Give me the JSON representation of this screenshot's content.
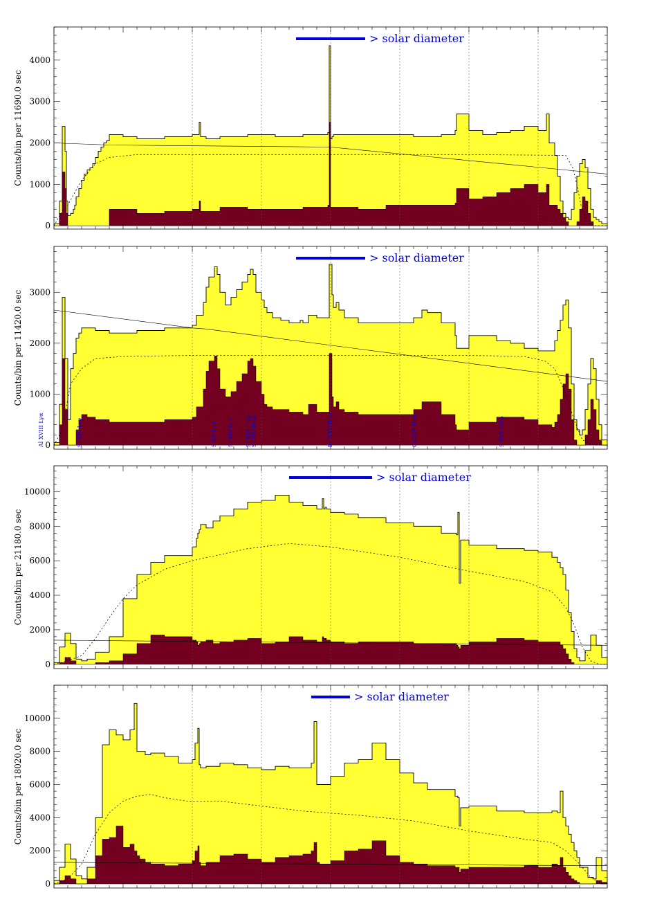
{
  "colors": {
    "total_fill": "#ffff33",
    "sub_fill": "#730020",
    "outline": "#000000",
    "legend_blue": "#0000dd",
    "grid": "#555555"
  },
  "legend_text": "> solar diameter",
  "chart_data": [
    {
      "type": "area",
      "xlim": [
        0,
        400
      ],
      "ylim": [
        -80,
        4800
      ],
      "yticks": [
        0,
        1000,
        2000,
        3000,
        4000
      ],
      "ylabel": "Counts/bin per 11690.0 sec",
      "grid": "vertical dotted",
      "legend_bar": [
        175,
        225
      ],
      "line_labels": [],
      "x": [
        0,
        4,
        6,
        8,
        9,
        10,
        12,
        14,
        15,
        16,
        18,
        20,
        22,
        24,
        26,
        28,
        30,
        32,
        34,
        36,
        38,
        40,
        50,
        60,
        80,
        100,
        105,
        106,
        110,
        120,
        140,
        160,
        180,
        198,
        199,
        200,
        201,
        202,
        220,
        240,
        260,
        280,
        290,
        291,
        300,
        310,
        320,
        330,
        340,
        350,
        356,
        358,
        360,
        362,
        364,
        366,
        368,
        370,
        372,
        374,
        376,
        378,
        380,
        382,
        384,
        386,
        388,
        390,
        392,
        394,
        396,
        400
      ],
      "total": [
        50,
        600,
        2400,
        1800,
        600,
        250,
        300,
        400,
        500,
        700,
        900,
        1100,
        1250,
        1350,
        1400,
        1500,
        1650,
        1800,
        1900,
        2000,
        2050,
        2200,
        2150,
        2100,
        2150,
        2200,
        2500,
        2150,
        2100,
        2150,
        2200,
        2150,
        2200,
        2250,
        4350,
        2100,
        2150,
        2200,
        2200,
        2200,
        2150,
        2200,
        2300,
        2700,
        2300,
        2200,
        2250,
        2300,
        2400,
        2300,
        2700,
        2000,
        2000,
        1700,
        1200,
        600,
        300,
        200,
        150,
        400,
        800,
        1200,
        1500,
        1600,
        1400,
        900,
        400,
        200,
        150,
        100,
        50,
        50
      ],
      "sub": [
        0,
        300,
        1300,
        900,
        300,
        0,
        0,
        0,
        0,
        0,
        0,
        0,
        0,
        0,
        0,
        0,
        0,
        0,
        0,
        0,
        0,
        400,
        400,
        300,
        350,
        400,
        600,
        350,
        350,
        450,
        400,
        400,
        450,
        500,
        2500,
        450,
        450,
        450,
        400,
        500,
        500,
        500,
        550,
        900,
        650,
        700,
        800,
        900,
        1000,
        800,
        1000,
        500,
        500,
        500,
        400,
        300,
        200,
        100,
        0,
        0,
        0,
        100,
        400,
        700,
        600,
        300,
        100,
        0,
        0,
        0,
        0,
        0
      ],
      "background_line": [
        [
          0,
          2000
        ],
        [
          40,
          1950
        ],
        [
          200,
          1900
        ],
        [
          400,
          1250
        ]
      ],
      "model": [
        [
          0,
          0
        ],
        [
          5,
          300
        ],
        [
          10,
          500
        ],
        [
          20,
          1100
        ],
        [
          30,
          1500
        ],
        [
          40,
          1650
        ],
        [
          60,
          1720
        ],
        [
          100,
          1720
        ],
        [
          200,
          1720
        ],
        [
          300,
          1720
        ],
        [
          370,
          1700
        ],
        [
          375,
          1400
        ],
        [
          378,
          1000
        ],
        [
          381,
          500
        ],
        [
          385,
          100
        ],
        [
          390,
          0
        ],
        [
          400,
          0
        ]
      ]
    },
    {
      "type": "area",
      "xlim": [
        0,
        400
      ],
      "ylim": [
        -80,
        3900
      ],
      "yticks": [
        0,
        1000,
        2000,
        3000
      ],
      "ylabel": "Counts/bin per 11420.0 sec",
      "grid": "vertical dotted",
      "legend_bar": [
        175,
        225
      ],
      "line_labels": [
        {
          "x": -8,
          "text": "Al XVIII Lyα"
        },
        {
          "x": 20,
          "text": "Si XIV Lyγ"
        },
        {
          "x": 117,
          "text": "S XV Lyα"
        },
        {
          "x": 129,
          "text": "Si XIV Lyβ"
        },
        {
          "x": 142,
          "text": "Si XIII 1s3p"
        },
        {
          "x": 146,
          "text": "Si XIII Heα"
        },
        {
          "x": 201,
          "text": "Fe XXV Heα"
        },
        {
          "x": 262,
          "text": "Ca XIX Heα"
        },
        {
          "x": 325,
          "text": "S XVI 1s3p"
        }
      ],
      "x": [
        0,
        4,
        6,
        8,
        10,
        12,
        14,
        16,
        18,
        20,
        22,
        24,
        30,
        40,
        60,
        80,
        100,
        103,
        108,
        110,
        112,
        116,
        118,
        120,
        124,
        128,
        132,
        136,
        140,
        142,
        144,
        146,
        150,
        152,
        154,
        158,
        164,
        170,
        178,
        180,
        184,
        190,
        197,
        199,
        201,
        202,
        204,
        206,
        210,
        220,
        240,
        260,
        266,
        270,
        280,
        290,
        291,
        300,
        320,
        330,
        340,
        350,
        360,
        362,
        364,
        366,
        368,
        370,
        372,
        374,
        376,
        378,
        380,
        382,
        384,
        386,
        388,
        390,
        392,
        394,
        396,
        400
      ],
      "total": [
        50,
        800,
        2900,
        1700,
        500,
        1500,
        1800,
        2100,
        2200,
        2300,
        2300,
        2300,
        2250,
        2200,
        2250,
        2300,
        2350,
        2550,
        2800,
        3100,
        3300,
        3500,
        3350,
        3000,
        2750,
        2900,
        3050,
        3200,
        3350,
        3450,
        3350,
        3000,
        2850,
        2700,
        2600,
        2500,
        2450,
        2400,
        2450,
        2400,
        2550,
        2500,
        2500,
        3550,
        2950,
        2700,
        2800,
        2650,
        2500,
        2400,
        2400,
        2500,
        2650,
        2600,
        2400,
        2150,
        1900,
        2150,
        2050,
        2000,
        1900,
        1850,
        1850,
        2050,
        2250,
        2450,
        2750,
        2850,
        2300,
        1200,
        500,
        300,
        200,
        300,
        700,
        1200,
        1700,
        1500,
        900,
        400,
        100,
        50
      ],
      "sub": [
        0,
        400,
        1700,
        700,
        0,
        0,
        0,
        300,
        500,
        600,
        600,
        550,
        500,
        450,
        450,
        500,
        550,
        750,
        1100,
        1450,
        1650,
        1750,
        1500,
        1100,
        950,
        1050,
        1250,
        1400,
        1650,
        1700,
        1550,
        1250,
        1000,
        800,
        750,
        700,
        700,
        650,
        650,
        600,
        800,
        650,
        650,
        1800,
        950,
        750,
        850,
        700,
        650,
        600,
        600,
        700,
        850,
        850,
        600,
        400,
        300,
        450,
        550,
        550,
        500,
        400,
        350,
        450,
        600,
        900,
        1200,
        1400,
        1100,
        500,
        100,
        0,
        0,
        0,
        200,
        500,
        900,
        700,
        300,
        100,
        0,
        0
      ],
      "background_line": [
        [
          0,
          2650
        ],
        [
          100,
          2300
        ],
        [
          110,
          2280
        ],
        [
          400,
          1250
        ]
      ],
      "model": [
        [
          0,
          0
        ],
        [
          6,
          300
        ],
        [
          12,
          1200
        ],
        [
          20,
          1500
        ],
        [
          30,
          1700
        ],
        [
          50,
          1740
        ],
        [
          100,
          1760
        ],
        [
          200,
          1760
        ],
        [
          300,
          1760
        ],
        [
          340,
          1740
        ],
        [
          355,
          1650
        ],
        [
          362,
          1500
        ],
        [
          370,
          1000
        ],
        [
          376,
          500
        ],
        [
          382,
          100
        ],
        [
          390,
          0
        ],
        [
          400,
          0
        ]
      ]
    },
    {
      "type": "area",
      "xlim": [
        0,
        400
      ],
      "ylim": [
        -250,
        11500
      ],
      "yticks": [
        0,
        2000,
        4000,
        6000,
        8000,
        10000
      ],
      "ylabel": "Counts/bin per 21180.0 sec",
      "grid": "vertical dotted",
      "legend_bar": [
        170,
        230
      ],
      "line_labels": [],
      "x": [
        0,
        4,
        8,
        12,
        16,
        20,
        24,
        30,
        40,
        50,
        60,
        70,
        80,
        100,
        103,
        104,
        105,
        106,
        110,
        115,
        120,
        130,
        140,
        150,
        160,
        170,
        180,
        190,
        194,
        195,
        196,
        197,
        200,
        210,
        220,
        240,
        260,
        280,
        291,
        292,
        293,
        294,
        300,
        320,
        340,
        350,
        360,
        364,
        366,
        368,
        370,
        372,
        374,
        376,
        378,
        380,
        384,
        388,
        392,
        396,
        400
      ],
      "total": [
        100,
        1000,
        1800,
        1200,
        300,
        200,
        300,
        700,
        1600,
        3800,
        5200,
        5900,
        6300,
        6800,
        7300,
        7600,
        7800,
        8100,
        7900,
        8300,
        8600,
        9000,
        9400,
        9500,
        9800,
        9400,
        9200,
        9000,
        9600,
        9000,
        9100,
        9000,
        8800,
        8700,
        8500,
        8200,
        8000,
        7600,
        7500,
        8800,
        4700,
        7200,
        6900,
        6700,
        6600,
        6500,
        6200,
        5900,
        5600,
        5200,
        4300,
        3000,
        1900,
        900,
        400,
        200,
        800,
        1700,
        1100,
        400,
        100
      ],
      "sub": [
        0,
        100,
        400,
        200,
        0,
        0,
        0,
        100,
        200,
        600,
        1200,
        1700,
        1600,
        1400,
        1300,
        1100,
        1200,
        1300,
        1400,
        1200,
        1300,
        1400,
        1500,
        1200,
        1300,
        1600,
        1400,
        1300,
        1600,
        1500,
        1500,
        1400,
        1300,
        1200,
        1300,
        1300,
        1200,
        1200,
        1100,
        1000,
        900,
        1100,
        1300,
        1500,
        1400,
        1300,
        1300,
        1300,
        1100,
        900,
        600,
        300,
        100,
        0,
        0,
        0,
        0,
        0,
        0,
        0,
        0
      ],
      "background_line": [
        [
          0,
          1400
        ],
        [
          400,
          1100
        ]
      ],
      "model": [
        [
          0,
          0
        ],
        [
          10,
          200
        ],
        [
          20,
          500
        ],
        [
          30,
          1500
        ],
        [
          40,
          2700
        ],
        [
          50,
          3800
        ],
        [
          60,
          4600
        ],
        [
          80,
          5500
        ],
        [
          100,
          6000
        ],
        [
          140,
          6700
        ],
        [
          170,
          7000
        ],
        [
          200,
          6800
        ],
        [
          250,
          6200
        ],
        [
          300,
          5400
        ],
        [
          340,
          4800
        ],
        [
          360,
          4200
        ],
        [
          370,
          3300
        ],
        [
          376,
          2300
        ],
        [
          382,
          1000
        ],
        [
          388,
          200
        ],
        [
          394,
          0
        ],
        [
          400,
          0
        ]
      ]
    },
    {
      "type": "area",
      "xlim": [
        0,
        400
      ],
      "ylim": [
        -250,
        12000
      ],
      "yticks": [
        0,
        2000,
        4000,
        6000,
        8000,
        10000
      ],
      "ylabel": "Counts/bin per 18020.0 sec",
      "grid": "vertical dotted",
      "legend_bar": [
        186,
        214
      ],
      "line_labels": [],
      "x": [
        0,
        4,
        8,
        12,
        16,
        20,
        24,
        30,
        35,
        40,
        45,
        50,
        55,
        58,
        60,
        62,
        66,
        70,
        80,
        90,
        100,
        102,
        104,
        105,
        106,
        110,
        120,
        130,
        140,
        150,
        160,
        170,
        180,
        186,
        188,
        190,
        192,
        200,
        210,
        220,
        230,
        240,
        250,
        260,
        270,
        290,
        292,
        293,
        294,
        300,
        320,
        340,
        350,
        360,
        364,
        366,
        368,
        370,
        372,
        374,
        376,
        378,
        380,
        386,
        390,
        392,
        396,
        400
      ],
      "total": [
        200,
        1000,
        2400,
        1500,
        500,
        300,
        1000,
        4000,
        8400,
        9300,
        9000,
        8700,
        9300,
        10900,
        8000,
        8000,
        7800,
        7900,
        7700,
        7300,
        7500,
        8500,
        9400,
        7200,
        7000,
        7100,
        7300,
        7200,
        7000,
        6900,
        7100,
        7000,
        7000,
        7300,
        9800,
        6000,
        6000,
        6500,
        7300,
        7500,
        8500,
        7500,
        6700,
        6100,
        5700,
        5300,
        5200,
        3500,
        4600,
        4700,
        4400,
        4300,
        4300,
        4400,
        4300,
        5600,
        4000,
        3500,
        3000,
        2500,
        2000,
        1600,
        1000,
        400,
        300,
        1600,
        800,
        100
      ],
      "sub": [
        0,
        200,
        500,
        300,
        0,
        0,
        300,
        1700,
        2700,
        2800,
        3500,
        2200,
        2400,
        2000,
        1700,
        1500,
        1300,
        1200,
        1100,
        1200,
        1400,
        2000,
        2300,
        1300,
        1100,
        1300,
        1700,
        1800,
        1500,
        1300,
        1600,
        1700,
        1800,
        2000,
        2500,
        1300,
        1200,
        1400,
        2000,
        2100,
        2600,
        1700,
        1300,
        1200,
        1100,
        1000,
        1000,
        700,
        900,
        1000,
        1000,
        1100,
        1000,
        1200,
        1100,
        1600,
        1000,
        700,
        500,
        300,
        200,
        100,
        0,
        0,
        0,
        200,
        100,
        0
      ],
      "background_line": [
        [
          0,
          1300
        ],
        [
          390,
          1100
        ],
        [
          400,
          1100
        ]
      ],
      "model": [
        [
          0,
          0
        ],
        [
          10,
          300
        ],
        [
          20,
          1200
        ],
        [
          30,
          3000
        ],
        [
          40,
          4300
        ],
        [
          50,
          5000
        ],
        [
          60,
          5300
        ],
        [
          70,
          5400
        ],
        [
          80,
          5200
        ],
        [
          100,
          4950
        ],
        [
          120,
          5000
        ],
        [
          150,
          4700
        ],
        [
          180,
          4400
        ],
        [
          220,
          4150
        ],
        [
          260,
          3800
        ],
        [
          300,
          3200
        ],
        [
          340,
          2700
        ],
        [
          360,
          2500
        ],
        [
          370,
          2000
        ],
        [
          380,
          1200
        ],
        [
          388,
          400
        ],
        [
          396,
          0
        ],
        [
          400,
          0
        ]
      ]
    }
  ]
}
